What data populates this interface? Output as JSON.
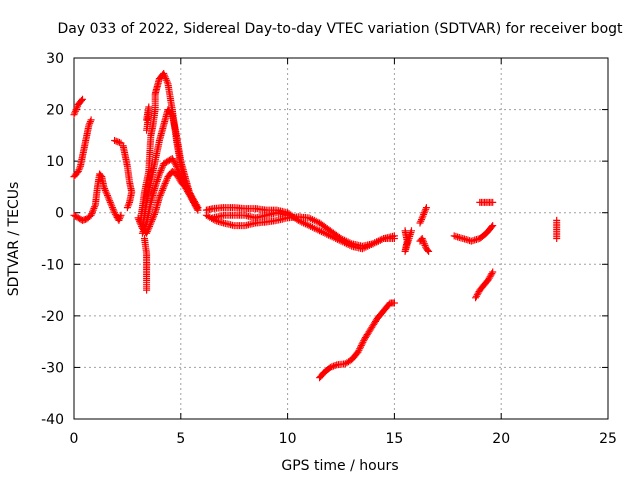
{
  "chart_data": {
    "type": "scatter",
    "title": "Day 033 of 2022, Sidereal Day-to-day VTEC variation (SDTVAR) for receiver bogt",
    "xlabel": "GPS time / hours",
    "ylabel": "SDTVAR / TECUs",
    "xlim": [
      0,
      25
    ],
    "ylim": [
      -40,
      30
    ],
    "xticks": [
      "0",
      "5",
      "10",
      "15",
      "20",
      "25"
    ],
    "yticks": [
      "30",
      "20",
      "10",
      "0",
      "-10",
      "-20",
      "-30",
      "-40"
    ],
    "grid": true,
    "marker": "+",
    "color": "#ff0000",
    "series": [
      {
        "name": "s1",
        "points": [
          [
            0.0,
            -0.5
          ],
          [
            0.2,
            -1.0
          ],
          [
            0.4,
            -1.5
          ],
          [
            0.6,
            -1.2
          ],
          [
            0.8,
            -0.5
          ],
          [
            1.0,
            1.5
          ],
          [
            1.1,
            5.0
          ],
          [
            1.2,
            7.5
          ],
          [
            1.3,
            7.0
          ],
          [
            1.4,
            5.0
          ],
          [
            1.5,
            4.0
          ],
          [
            1.7,
            2.0
          ],
          [
            1.9,
            0.0
          ],
          [
            2.1,
            -1.5
          ],
          [
            2.2,
            -0.5
          ]
        ]
      },
      {
        "name": "s2",
        "points": [
          [
            0.0,
            7.0
          ],
          [
            0.2,
            8.0
          ],
          [
            0.3,
            9.0
          ],
          [
            0.4,
            11.0
          ],
          [
            0.5,
            13.0
          ],
          [
            0.6,
            15.0
          ],
          [
            0.7,
            17.0
          ],
          [
            0.8,
            18.0
          ]
        ]
      },
      {
        "name": "s3",
        "points": [
          [
            0.0,
            19.0
          ],
          [
            0.1,
            20.0
          ],
          [
            0.2,
            21.0
          ],
          [
            0.3,
            21.5
          ],
          [
            0.4,
            22.0
          ]
        ]
      },
      {
        "name": "s4",
        "points": [
          [
            2.3,
            13.0
          ],
          [
            2.4,
            11.0
          ],
          [
            2.5,
            9.0
          ],
          [
            2.6,
            6.0
          ],
          [
            2.7,
            4.0
          ],
          [
            2.6,
            2.0
          ],
          [
            2.5,
            1.0
          ]
        ]
      },
      {
        "name": "s5",
        "points": [
          [
            1.9,
            14.0
          ],
          [
            2.2,
            13.5
          ]
        ]
      },
      {
        "name": "s6",
        "points": [
          [
            3.1,
            -2.0
          ],
          [
            3.3,
            4.0
          ],
          [
            3.5,
            8.0
          ],
          [
            3.6,
            15.0
          ],
          [
            3.7,
            17.0
          ],
          [
            3.8,
            20.0
          ],
          [
            3.8,
            23.0
          ],
          [
            3.9,
            24.5
          ],
          [
            4.0,
            26.0
          ],
          [
            4.2,
            27.0
          ],
          [
            4.4,
            25.0
          ],
          [
            4.6,
            20.0
          ],
          [
            4.8,
            14.0
          ],
          [
            5.0,
            9.0
          ],
          [
            5.2,
            6.0
          ],
          [
            5.4,
            4.0
          ],
          [
            5.6,
            2.0
          ],
          [
            5.8,
            1.0
          ]
        ]
      },
      {
        "name": "s7",
        "points": [
          [
            3.2,
            -3.0
          ],
          [
            3.4,
            2.0
          ],
          [
            3.6,
            6.0
          ],
          [
            3.8,
            10.0
          ],
          [
            4.0,
            14.0
          ],
          [
            4.2,
            17.0
          ],
          [
            4.4,
            20.0
          ],
          [
            4.6,
            19.0
          ],
          [
            4.8,
            15.0
          ],
          [
            5.0,
            10.0
          ],
          [
            5.2,
            7.0
          ],
          [
            5.4,
            4.0
          ],
          [
            5.6,
            2.0
          ],
          [
            5.8,
            0.5
          ]
        ]
      },
      {
        "name": "s8",
        "points": [
          [
            3.2,
            -4.0
          ],
          [
            3.4,
            -2.0
          ],
          [
            3.6,
            2.0
          ],
          [
            3.8,
            5.0
          ],
          [
            4.0,
            7.5
          ],
          [
            4.2,
            9.5
          ],
          [
            4.4,
            10.0
          ],
          [
            4.6,
            10.5
          ],
          [
            4.8,
            9.0
          ],
          [
            5.0,
            7.0
          ],
          [
            5.2,
            5.5
          ],
          [
            5.4,
            4.0
          ],
          [
            5.6,
            2.5
          ],
          [
            5.8,
            1.0
          ]
        ]
      },
      {
        "name": "s9",
        "points": [
          [
            3.0,
            -1.0
          ],
          [
            3.2,
            -3.0
          ],
          [
            3.4,
            -4.0
          ],
          [
            3.6,
            -2.0
          ],
          [
            3.8,
            0.0
          ],
          [
            4.0,
            3.0
          ],
          [
            4.2,
            5.0
          ],
          [
            4.4,
            7.0
          ],
          [
            4.6,
            8.0
          ],
          [
            4.8,
            7.5
          ],
          [
            5.0,
            6.0
          ],
          [
            5.2,
            5.0
          ],
          [
            5.4,
            3.5
          ],
          [
            5.6,
            2.0
          ],
          [
            5.8,
            0.5
          ]
        ]
      },
      {
        "name": "s10",
        "points": [
          [
            3.3,
            -5.0
          ],
          [
            3.4,
            -8.0
          ],
          [
            3.4,
            -10.0
          ],
          [
            3.4,
            -12.0
          ],
          [
            3.4,
            -13.5
          ],
          [
            3.4,
            -15.0
          ]
        ]
      },
      {
        "name": "s11",
        "points": [
          [
            3.4,
            16.0
          ],
          [
            3.5,
            19.0
          ],
          [
            3.5,
            20.5
          ],
          [
            3.4,
            18.0
          ]
        ]
      },
      {
        "name": "s12",
        "points": [
          [
            6.2,
            -0.5
          ],
          [
            6.6,
            -1.5
          ],
          [
            7.0,
            -2.0
          ],
          [
            7.5,
            -2.5
          ],
          [
            8.0,
            -2.5
          ],
          [
            8.5,
            -2.0
          ],
          [
            9.0,
            -1.8
          ],
          [
            9.5,
            -1.5
          ],
          [
            10.0,
            -1.0
          ],
          [
            10.5,
            -0.8
          ],
          [
            11.0,
            -1.0
          ],
          [
            11.5,
            -2.0
          ],
          [
            12.0,
            -3.5
          ],
          [
            12.5,
            -5.0
          ],
          [
            13.0,
            -6.0
          ],
          [
            13.5,
            -6.5
          ],
          [
            14.0,
            -6.0
          ],
          [
            14.5,
            -5.0
          ],
          [
            15.0,
            -5.0
          ]
        ]
      },
      {
        "name": "s13",
        "points": [
          [
            6.2,
            0.5
          ],
          [
            6.5,
            0.8
          ],
          [
            7.0,
            1.0
          ],
          [
            7.5,
            1.0
          ],
          [
            8.0,
            0.8
          ],
          [
            8.5,
            0.8
          ],
          [
            9.0,
            0.5
          ],
          [
            9.5,
            0.5
          ],
          [
            10.0,
            0.0
          ],
          [
            10.5,
            -1.5
          ],
          [
            11.0,
            -2.5
          ],
          [
            11.5,
            -3.5
          ],
          [
            12.0,
            -4.5
          ],
          [
            12.5,
            -5.5
          ],
          [
            13.0,
            -6.5
          ],
          [
            13.5,
            -7.0
          ],
          [
            14.0,
            -6.0
          ],
          [
            14.5,
            -5.0
          ],
          [
            15.0,
            -4.5
          ]
        ]
      },
      {
        "name": "s14",
        "points": [
          [
            6.5,
            -1.0
          ],
          [
            7.0,
            -0.5
          ],
          [
            7.5,
            -0.5
          ],
          [
            8.0,
            -0.5
          ],
          [
            8.5,
            -1.0
          ],
          [
            9.0,
            -0.5
          ],
          [
            9.5,
            0.0
          ],
          [
            10.0,
            -0.5
          ]
        ]
      },
      {
        "name": "s15",
        "points": [
          [
            11.5,
            -32.0
          ],
          [
            11.7,
            -31.0
          ],
          [
            12.0,
            -30.0
          ],
          [
            12.3,
            -29.5
          ],
          [
            12.7,
            -29.3
          ],
          [
            13.0,
            -28.5
          ],
          [
            13.3,
            -27.0
          ],
          [
            13.6,
            -24.5
          ],
          [
            13.9,
            -22.5
          ],
          [
            14.2,
            -20.5
          ],
          [
            14.5,
            -19.0
          ],
          [
            14.8,
            -17.5
          ],
          [
            15.0,
            -17.5
          ]
        ]
      },
      {
        "name": "s16",
        "points": [
          [
            15.5,
            -3.5
          ],
          [
            15.6,
            -5.5
          ],
          [
            15.5,
            -7.5
          ],
          [
            15.8,
            -3.5
          ]
        ]
      },
      {
        "name": "s17",
        "points": [
          [
            16.2,
            -2.0
          ],
          [
            16.3,
            -1.0
          ],
          [
            16.4,
            0.0
          ],
          [
            16.5,
            1.0
          ]
        ]
      },
      {
        "name": "s18",
        "points": [
          [
            16.2,
            -5.5
          ],
          [
            16.3,
            -5.0
          ],
          [
            16.4,
            -6.0
          ],
          [
            16.5,
            -7.0
          ],
          [
            16.6,
            -7.5
          ]
        ]
      },
      {
        "name": "s19",
        "points": [
          [
            17.8,
            -4.5
          ],
          [
            18.2,
            -5.0
          ],
          [
            18.6,
            -5.5
          ],
          [
            19.0,
            -5.0
          ],
          [
            19.3,
            -4.0
          ],
          [
            19.6,
            -2.5
          ]
        ]
      },
      {
        "name": "s20",
        "points": [
          [
            18.8,
            -16.5
          ],
          [
            19.0,
            -15.0
          ],
          [
            19.2,
            -14.0
          ],
          [
            19.4,
            -13.0
          ],
          [
            19.6,
            -11.5
          ]
        ]
      },
      {
        "name": "s21",
        "points": [
          [
            19.0,
            2.0
          ],
          [
            19.3,
            2.0
          ],
          [
            19.6,
            2.0
          ]
        ]
      },
      {
        "name": "s22",
        "points": [
          [
            22.6,
            -1.5
          ],
          [
            22.6,
            -5.0
          ]
        ]
      }
    ]
  }
}
